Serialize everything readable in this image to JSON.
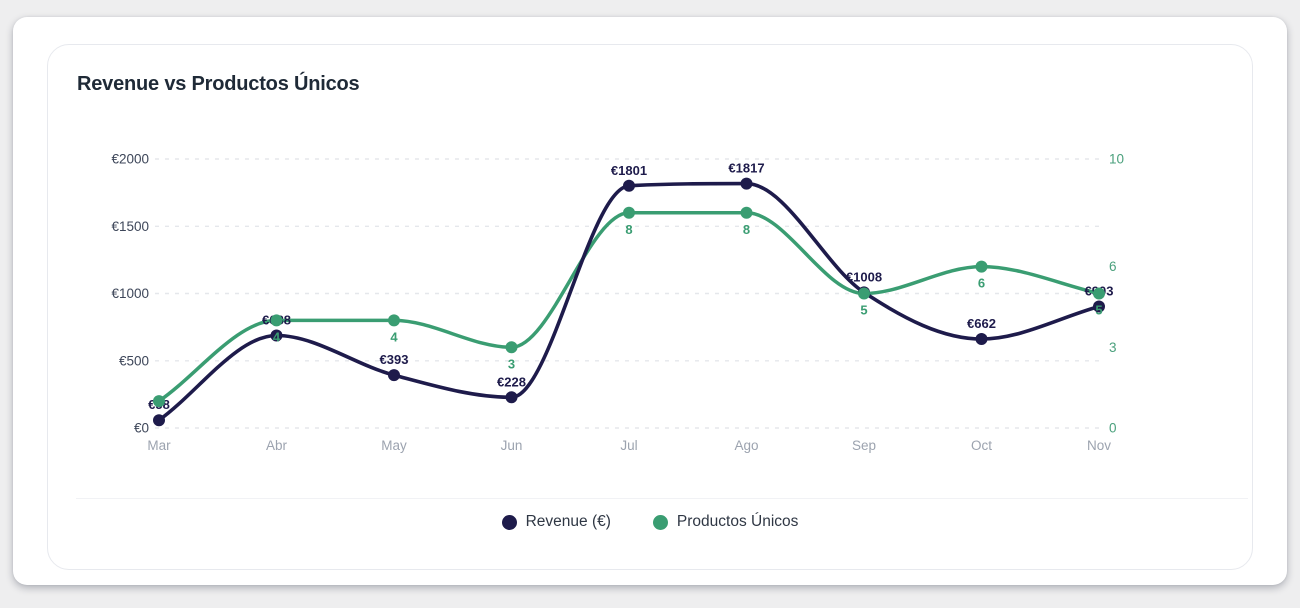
{
  "card": {
    "title": "Revenue vs Productos Únicos"
  },
  "legend": {
    "items": [
      {
        "label": "Revenue (€)",
        "color": "#1e1b4b"
      },
      {
        "label": "Productos Únicos",
        "color": "#3a9d72"
      }
    ]
  },
  "colors": {
    "revenue_line": "#1e1b4b",
    "productos_line": "#3a9d72",
    "gridline": "#e5e7eb",
    "left_tick_label": "#3d4659",
    "right_tick_label": "#4aa07c",
    "month_label": "#9ca3af"
  },
  "chart_data": {
    "type": "line",
    "title": "Revenue vs Productos Únicos",
    "categories": [
      "Mar",
      "Abr",
      "May",
      "Jun",
      "Jul",
      "Ago",
      "Sep",
      "Oct",
      "Nov"
    ],
    "series": [
      {
        "name": "Revenue (€)",
        "axis": "left",
        "color": "#1e1b4b",
        "values": [
          58,
          688,
          393,
          228,
          1801,
          1817,
          1008,
          662,
          903
        ],
        "point_labels": [
          "€58",
          "€688",
          "€393",
          "€228",
          "€1801",
          "€1817",
          "€1008",
          "€662",
          "€903"
        ]
      },
      {
        "name": "Productos Únicos",
        "axis": "right",
        "color": "#3a9d72",
        "values": [
          1,
          4,
          4,
          3,
          8,
          8,
          5,
          6,
          5
        ],
        "point_labels": [
          "",
          "4",
          "4",
          "3",
          "8",
          "8",
          "5",
          "6",
          "5"
        ]
      }
    ],
    "left_axis": {
      "range": [
        0,
        2000
      ],
      "ticks": [
        0,
        500,
        1000,
        1500,
        2000
      ],
      "labels": [
        "€0",
        "€500",
        "€1000",
        "€1500",
        "€2000"
      ]
    },
    "right_axis": {
      "range": [
        0,
        10
      ],
      "ticks": [
        0,
        3,
        6,
        10
      ],
      "labels": [
        "0",
        "3",
        "6",
        "10"
      ]
    },
    "grid": "dashed-horizontal",
    "legend_position": "bottom"
  }
}
